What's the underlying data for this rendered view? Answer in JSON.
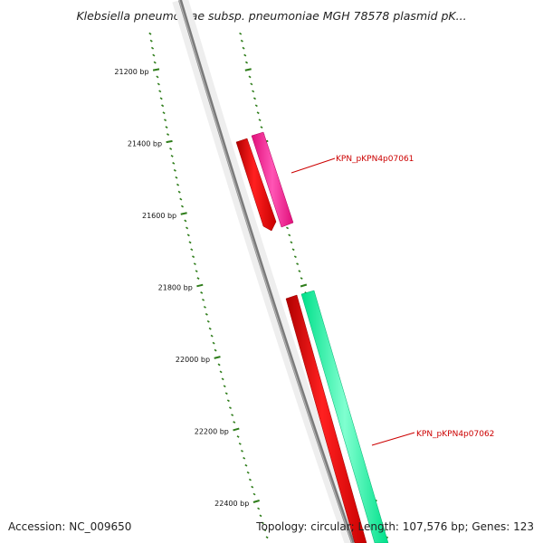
{
  "title": "Klebsiella pneumoniae subsp. pneumoniae MGH 78578 plasmid pK...",
  "accession": "Accession: NC_009650",
  "topology": "Topology: circular; Length: 107,576 bp; Genes: 123",
  "ruler": {
    "major_labels": [
      "21200 bp",
      "21400 bp",
      "21600 bp",
      "21800 bp",
      "22000 bp",
      "22200 bp",
      "22400 bp"
    ],
    "major_positions_bp": [
      21200,
      21400,
      21600,
      21800,
      22000,
      22200,
      22400
    ]
  },
  "genes": [
    {
      "label": "KPN_pKPN4p07061",
      "color": "#ff1493",
      "cds_color": "#ff0000"
    },
    {
      "label": "KPN_pKPN4p07062",
      "color": "#00ff99",
      "cds_color": "#ff0000"
    }
  ],
  "colors": {
    "backbone": "#808080",
    "tick": "#2e7d1a",
    "label_red": "#cc0000"
  }
}
